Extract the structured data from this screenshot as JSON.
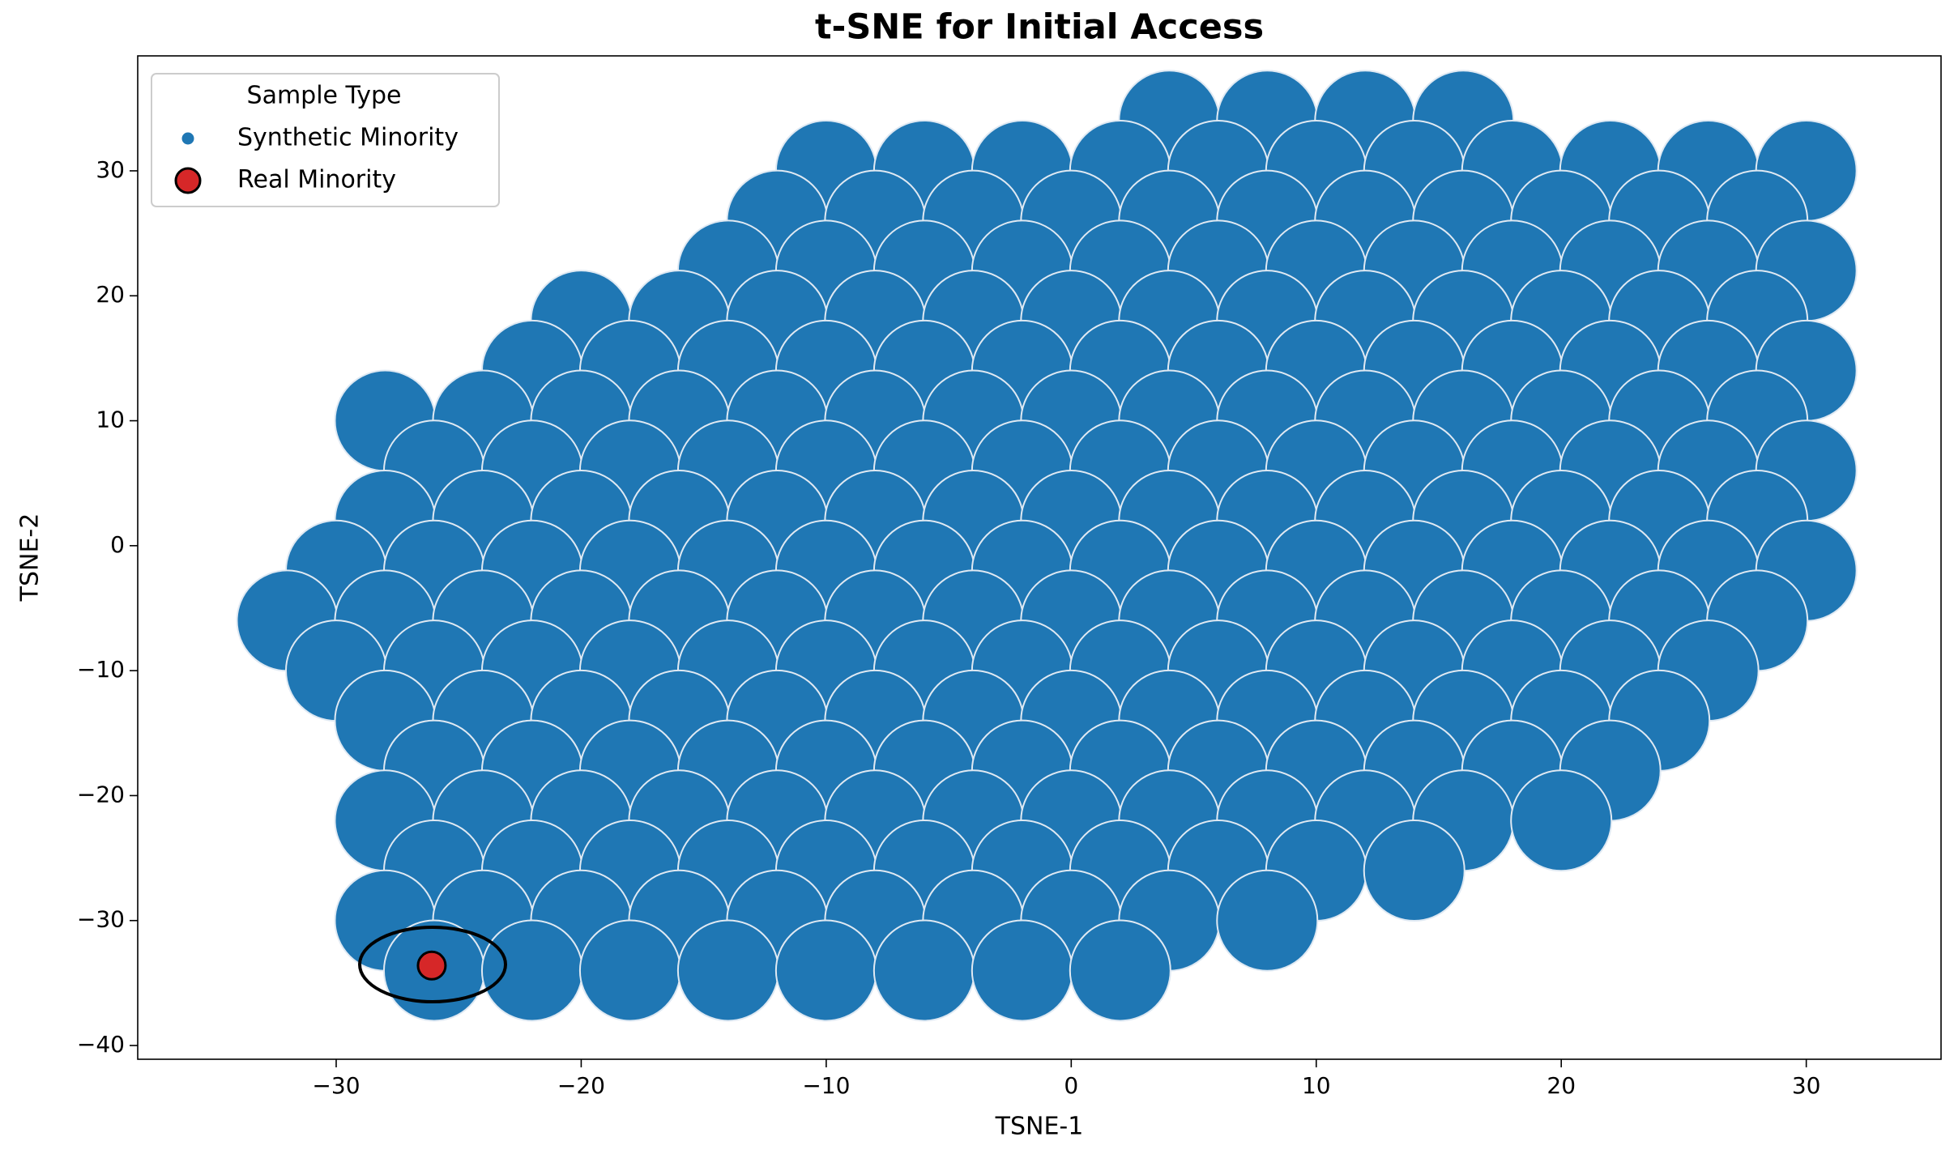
{
  "chart_data": {
    "type": "scatter",
    "title": "t-SNE for Initial Access",
    "x_label": "TSNE-1",
    "y_label": "TSNE-2",
    "xlim": [
      -38.1,
      35.5
    ],
    "ylim": [
      -41.1,
      39.2
    ],
    "xticks": [
      {
        "value": -30,
        "label": "−30"
      },
      {
        "value": -20,
        "label": "−20"
      },
      {
        "value": -10,
        "label": "−10"
      },
      0,
      10,
      20,
      30
    ],
    "yticks": [
      {
        "value": -40,
        "label": "−40"
      },
      {
        "value": -30,
        "label": "−30"
      },
      {
        "value": -20,
        "label": "−20"
      },
      {
        "value": -10,
        "label": "−10"
      },
      0,
      10,
      20,
      30
    ],
    "legend_title": "Sample Type",
    "legend": "upper left",
    "series": [
      {
        "name": "Synthetic Minority",
        "color": "#1f77b4",
        "x": [
          4,
          8,
          12,
          16,
          -10,
          -6,
          -2,
          2,
          6,
          10,
          14,
          18,
          22,
          26,
          30,
          -12,
          -8,
          -4,
          0,
          4,
          8,
          12,
          16,
          20,
          24,
          28,
          -14,
          -10,
          -6,
          -2,
          2,
          6,
          10,
          14,
          18,
          22,
          26,
          30,
          -20,
          -16,
          -12,
          -8,
          -4,
          0,
          4,
          8,
          12,
          16,
          20,
          24,
          28,
          -22,
          -18,
          -14,
          -10,
          -6,
          -2,
          2,
          6,
          10,
          14,
          18,
          22,
          26,
          30,
          -28,
          -24,
          -20,
          -16,
          -12,
          -8,
          -4,
          0,
          4,
          8,
          12,
          16,
          20,
          24,
          28,
          -26,
          -22,
          -18,
          -14,
          -10,
          -6,
          -2,
          2,
          6,
          10,
          14,
          18,
          22,
          26,
          30,
          -28,
          -24,
          -20,
          -16,
          -12,
          -8,
          -4,
          0,
          4,
          8,
          12,
          16,
          20,
          24,
          28,
          -30,
          -26,
          -22,
          -18,
          -14,
          -10,
          -6,
          -2,
          2,
          6,
          10,
          14,
          18,
          22,
          26,
          30,
          -32,
          -28,
          -24,
          -20,
          -16,
          -12,
          -8,
          -4,
          0,
          4,
          8,
          12,
          16,
          20,
          24,
          28,
          -30,
          -26,
          -22,
          -18,
          -14,
          -10,
          -6,
          -2,
          2,
          6,
          10,
          14,
          18,
          22,
          26,
          -28,
          -24,
          -20,
          -16,
          -12,
          -8,
          -4,
          0,
          4,
          8,
          12,
          16,
          20,
          24,
          -26,
          -22,
          -18,
          -14,
          -10,
          -6,
          -2,
          2,
          6,
          10,
          14,
          18,
          22,
          -28,
          -24,
          -20,
          -16,
          -12,
          -8,
          -4,
          0,
          4,
          8,
          12,
          16,
          20,
          -26,
          -22,
          -18,
          -14,
          -10,
          -6,
          -2,
          2,
          6,
          10,
          14,
          -28,
          -24,
          -20,
          -16,
          -12,
          -8,
          -4,
          0,
          4,
          8,
          -26,
          -22,
          -18,
          -14,
          -10,
          -6,
          -2,
          2
        ],
        "y": [
          34,
          34,
          34,
          34,
          30,
          30,
          30,
          30,
          30,
          30,
          30,
          30,
          30,
          30,
          30,
          26,
          26,
          26,
          26,
          26,
          26,
          26,
          26,
          26,
          26,
          26,
          22,
          22,
          22,
          22,
          22,
          22,
          22,
          22,
          22,
          22,
          22,
          22,
          18,
          18,
          18,
          18,
          18,
          18,
          18,
          18,
          18,
          18,
          18,
          18,
          18,
          14,
          14,
          14,
          14,
          14,
          14,
          14,
          14,
          14,
          14,
          14,
          14,
          14,
          14,
          10,
          10,
          10,
          10,
          10,
          10,
          10,
          10,
          10,
          10,
          10,
          10,
          10,
          10,
          10,
          6,
          6,
          6,
          6,
          6,
          6,
          6,
          6,
          6,
          6,
          6,
          6,
          6,
          6,
          6,
          2,
          2,
          2,
          2,
          2,
          2,
          2,
          2,
          2,
          2,
          2,
          2,
          2,
          2,
          2,
          -2,
          -2,
          -2,
          -2,
          -2,
          -2,
          -2,
          -2,
          -2,
          -2,
          -2,
          -2,
          -2,
          -2,
          -2,
          -2,
          -6,
          -6,
          -6,
          -6,
          -6,
          -6,
          -6,
          -6,
          -6,
          -6,
          -6,
          -6,
          -6,
          -6,
          -6,
          -6,
          -10,
          -10,
          -10,
          -10,
          -10,
          -10,
          -10,
          -10,
          -10,
          -10,
          -10,
          -10,
          -10,
          -10,
          -10,
          -14,
          -14,
          -14,
          -14,
          -14,
          -14,
          -14,
          -14,
          -14,
          -14,
          -14,
          -14,
          -14,
          -14,
          -18,
          -18,
          -18,
          -18,
          -18,
          -18,
          -18,
          -18,
          -18,
          -18,
          -18,
          -18,
          -18,
          -22,
          -22,
          -22,
          -22,
          -22,
          -22,
          -22,
          -22,
          -22,
          -22,
          -22,
          -22,
          -22,
          -26,
          -26,
          -26,
          -26,
          -26,
          -26,
          -26,
          -26,
          -26,
          -26,
          -26,
          -30,
          -30,
          -30,
          -30,
          -30,
          -30,
          -30,
          -30,
          -30,
          -30,
          -34,
          -34,
          -34,
          -34,
          -34,
          -34,
          -34,
          -34
        ]
      },
      {
        "name": "Real Minority",
        "color": "#d62728",
        "x": [
          -26.1
        ],
        "y": [
          -33.6
        ]
      }
    ]
  }
}
